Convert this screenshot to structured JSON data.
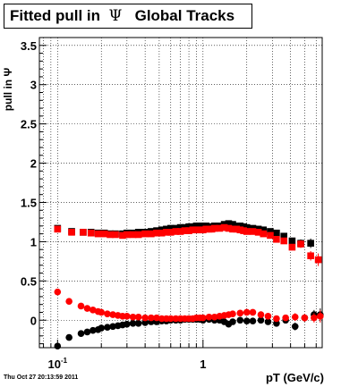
{
  "title": {
    "prefix": "Fitted pull in",
    "symbol": "Ψ",
    "suffix": "Global Tracks"
  },
  "footer": "Thu Oct 27 20:13:59 2011",
  "colors": {
    "black": "#000000",
    "red": "#ff0000"
  },
  "chart_data": {
    "type": "scatter",
    "xlabel": "pT (GeV/c)",
    "ylabel": "pull in Ψ",
    "x_scale": "log",
    "xlim": [
      0.075,
      6.6
    ],
    "ylim": [
      -0.35,
      3.6
    ],
    "grid": true,
    "x_tick_labels": [
      {
        "value": 0.1,
        "base": "10",
        "exp": "-1"
      },
      {
        "value": 1,
        "label": "1"
      }
    ],
    "y_ticks": [
      0,
      0.5,
      1,
      1.5,
      2,
      2.5,
      3,
      3.5
    ],
    "y_tick_labels": [
      "0",
      "0.5",
      "1",
      "1.5",
      "2",
      "2.5",
      "3",
      "3.5"
    ],
    "series": [
      {
        "color": "#000000",
        "marker": "square",
        "x": [
          0.1,
          0.125,
          0.15,
          0.17,
          0.19,
          0.21,
          0.23,
          0.25,
          0.28,
          0.3,
          0.33,
          0.36,
          0.4,
          0.44,
          0.48,
          0.52,
          0.56,
          0.6,
          0.65,
          0.7,
          0.75,
          0.8,
          0.85,
          0.9,
          0.95,
          1.0,
          1.05,
          1.1,
          1.15,
          1.2,
          1.3,
          1.4,
          1.5,
          1.6,
          1.7,
          1.8,
          1.9,
          2.0,
          2.2,
          2.4,
          2.6,
          2.9,
          3.2,
          3.6,
          4.1,
          4.7,
          5.5
        ],
        "y": [
          1.17,
          1.13,
          1.12,
          1.12,
          1.11,
          1.11,
          1.1,
          1.1,
          1.1,
          1.11,
          1.11,
          1.12,
          1.12,
          1.13,
          1.14,
          1.15,
          1.16,
          1.17,
          1.17,
          1.18,
          1.18,
          1.19,
          1.19,
          1.2,
          1.2,
          1.2,
          1.2,
          1.19,
          1.19,
          1.2,
          1.2,
          1.22,
          1.23,
          1.22,
          1.2,
          1.2,
          1.19,
          1.18,
          1.17,
          1.16,
          1.15,
          1.13,
          1.11,
          1.07,
          1.01,
          0.98,
          0.98
        ],
        "yerr": [
          0.03,
          0.02,
          0.02,
          0.02,
          0.02,
          0.02,
          0.02,
          0.02,
          0.02,
          0.02,
          0.02,
          0.02,
          0.02,
          0.02,
          0.02,
          0.02,
          0.02,
          0.02,
          0.02,
          0.02,
          0.02,
          0.02,
          0.02,
          0.02,
          0.02,
          0.02,
          0.02,
          0.02,
          0.02,
          0.02,
          0.02,
          0.02,
          0.03,
          0.03,
          0.03,
          0.03,
          0.03,
          0.03,
          0.03,
          0.03,
          0.03,
          0.03,
          0.04,
          0.04,
          0.04,
          0.05,
          0.06
        ]
      },
      {
        "color": "#ff0000",
        "marker": "square",
        "x": [
          0.1,
          0.125,
          0.15,
          0.17,
          0.19,
          0.21,
          0.23,
          0.25,
          0.28,
          0.3,
          0.33,
          0.36,
          0.4,
          0.44,
          0.48,
          0.52,
          0.56,
          0.6,
          0.65,
          0.7,
          0.75,
          0.8,
          0.85,
          0.9,
          0.95,
          1.0,
          1.05,
          1.1,
          1.15,
          1.2,
          1.3,
          1.4,
          1.5,
          1.6,
          1.7,
          1.8,
          1.9,
          2.0,
          2.2,
          2.4,
          2.6,
          2.9,
          3.2,
          3.6,
          4.1,
          4.7,
          5.5,
          6.2
        ],
        "y": [
          1.16,
          1.12,
          1.12,
          1.11,
          1.1,
          1.1,
          1.09,
          1.09,
          1.08,
          1.09,
          1.09,
          1.09,
          1.1,
          1.1,
          1.11,
          1.11,
          1.12,
          1.12,
          1.13,
          1.13,
          1.14,
          1.14,
          1.15,
          1.15,
          1.15,
          1.15,
          1.16,
          1.16,
          1.16,
          1.17,
          1.17,
          1.18,
          1.17,
          1.16,
          1.16,
          1.15,
          1.14,
          1.13,
          1.13,
          1.12,
          1.1,
          1.08,
          1.03,
          1.01,
          0.93,
          0.97,
          0.82,
          0.77
        ],
        "yerr": [
          0.03,
          0.02,
          0.02,
          0.02,
          0.02,
          0.02,
          0.02,
          0.02,
          0.02,
          0.02,
          0.02,
          0.02,
          0.02,
          0.02,
          0.02,
          0.02,
          0.02,
          0.02,
          0.02,
          0.02,
          0.02,
          0.02,
          0.02,
          0.02,
          0.02,
          0.02,
          0.02,
          0.02,
          0.02,
          0.02,
          0.02,
          0.02,
          0.03,
          0.03,
          0.03,
          0.03,
          0.03,
          0.03,
          0.03,
          0.03,
          0.03,
          0.03,
          0.04,
          0.04,
          0.04,
          0.05,
          0.06,
          0.08
        ]
      },
      {
        "color": "#000000",
        "marker": "circle",
        "x": [
          0.1,
          0.12,
          0.145,
          0.16,
          0.175,
          0.19,
          0.2,
          0.22,
          0.24,
          0.26,
          0.28,
          0.3,
          0.33,
          0.36,
          0.4,
          0.44,
          0.48,
          0.52,
          0.56,
          0.6,
          0.65,
          0.7,
          0.75,
          0.8,
          0.85,
          0.9,
          0.95,
          1.0,
          1.1,
          1.2,
          1.3,
          1.4,
          1.5,
          1.6,
          1.8,
          2.0,
          2.2,
          2.5,
          2.8,
          3.2,
          3.7,
          4.3,
          5.0,
          5.8,
          6.4
        ],
        "y": [
          -0.33,
          -0.22,
          -0.17,
          -0.15,
          -0.13,
          -0.12,
          -0.1,
          -0.09,
          -0.08,
          -0.07,
          -0.06,
          -0.05,
          -0.04,
          -0.04,
          -0.03,
          -0.02,
          -0.02,
          -0.01,
          -0.01,
          0.0,
          0.0,
          0.0,
          0.01,
          0.01,
          0.01,
          0.01,
          0.01,
          0.0,
          0.01,
          0.0,
          0.0,
          -0.02,
          -0.05,
          -0.02,
          0.0,
          -0.01,
          -0.01,
          0.0,
          -0.02,
          -0.04,
          0.0,
          -0.08,
          0.03,
          0.07,
          0.07
        ],
        "yerr": [
          0.03,
          0.02,
          0.02,
          0.02,
          0.02,
          0.02,
          0.02,
          0.02,
          0.02,
          0.02,
          0.02,
          0.02,
          0.02,
          0.02,
          0.02,
          0.02,
          0.02,
          0.02,
          0.02,
          0.02,
          0.02,
          0.02,
          0.02,
          0.02,
          0.02,
          0.02,
          0.02,
          0.02,
          0.02,
          0.02,
          0.02,
          0.02,
          0.03,
          0.03,
          0.03,
          0.03,
          0.03,
          0.03,
          0.03,
          0.04,
          0.04,
          0.05,
          0.05,
          0.06,
          0.08
        ]
      },
      {
        "color": "#ff0000",
        "marker": "circle",
        "x": [
          0.1,
          0.12,
          0.145,
          0.16,
          0.175,
          0.19,
          0.2,
          0.22,
          0.24,
          0.26,
          0.28,
          0.3,
          0.33,
          0.36,
          0.4,
          0.44,
          0.48,
          0.52,
          0.56,
          0.6,
          0.65,
          0.7,
          0.75,
          0.8,
          0.85,
          0.9,
          0.95,
          1.0,
          1.1,
          1.2,
          1.3,
          1.4,
          1.5,
          1.6,
          1.8,
          2.0,
          2.2,
          2.5,
          2.8,
          3.2,
          3.7,
          4.3,
          5.0,
          5.8,
          6.4
        ],
        "y": [
          0.36,
          0.24,
          0.18,
          0.15,
          0.13,
          0.11,
          0.1,
          0.08,
          0.07,
          0.06,
          0.05,
          0.05,
          0.04,
          0.04,
          0.03,
          0.03,
          0.03,
          0.02,
          0.02,
          0.02,
          0.02,
          0.02,
          0.02,
          0.02,
          0.02,
          0.03,
          0.03,
          0.03,
          0.04,
          0.04,
          0.05,
          0.06,
          0.07,
          0.08,
          0.09,
          0.1,
          0.1,
          0.07,
          0.05,
          0.02,
          0.03,
          0.04,
          0.03,
          0.03,
          0.05
        ],
        "yerr": [
          0.03,
          0.02,
          0.02,
          0.02,
          0.02,
          0.02,
          0.02,
          0.02,
          0.02,
          0.02,
          0.02,
          0.02,
          0.02,
          0.02,
          0.02,
          0.02,
          0.02,
          0.02,
          0.02,
          0.02,
          0.02,
          0.02,
          0.02,
          0.02,
          0.02,
          0.02,
          0.02,
          0.02,
          0.02,
          0.02,
          0.02,
          0.02,
          0.03,
          0.03,
          0.03,
          0.03,
          0.03,
          0.03,
          0.03,
          0.04,
          0.04,
          0.05,
          0.05,
          0.06,
          0.08
        ]
      }
    ]
  }
}
